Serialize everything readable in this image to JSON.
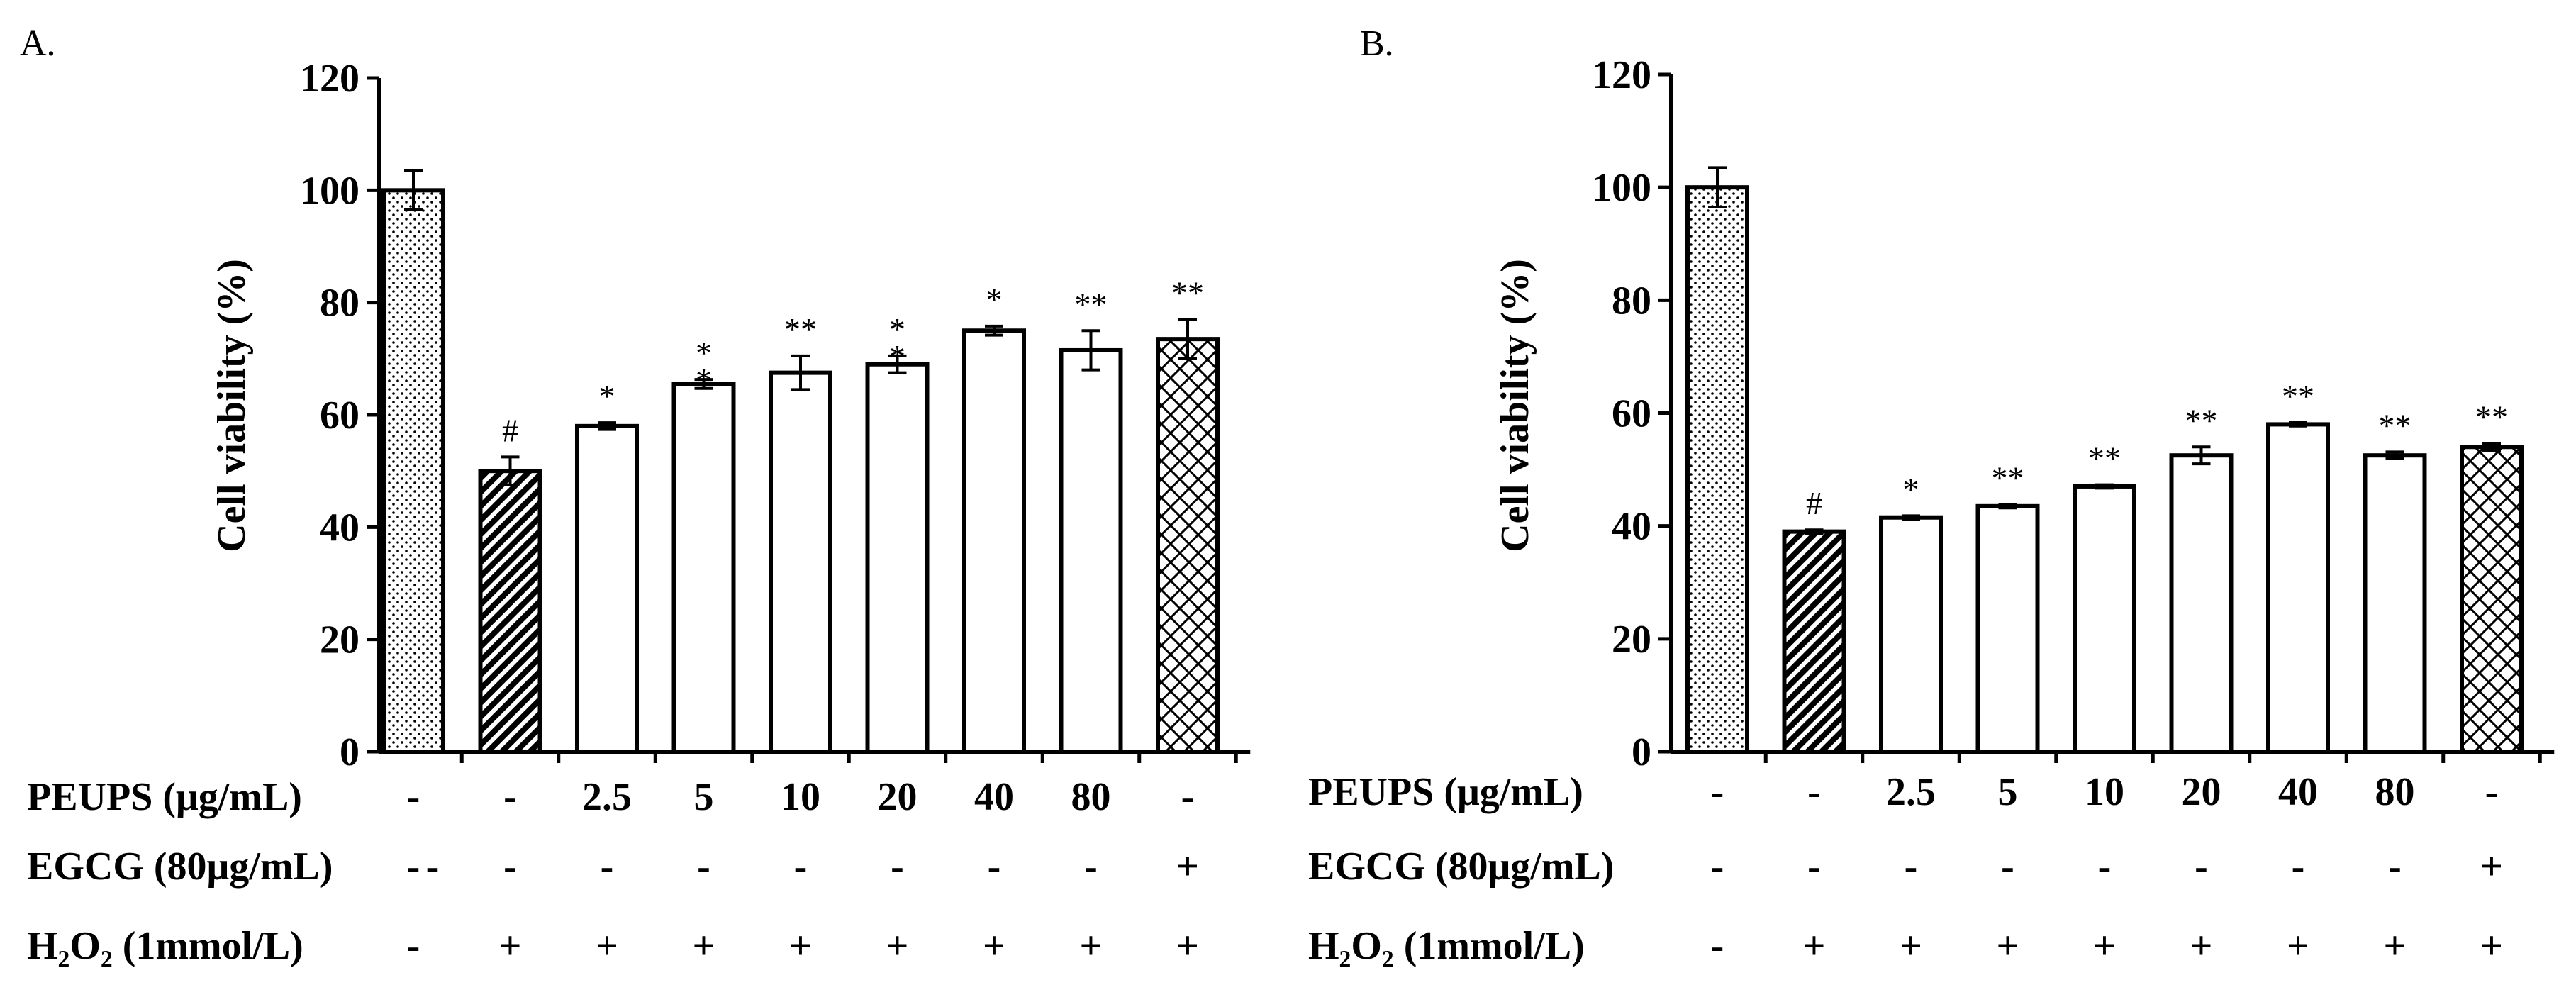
{
  "chart_data": [
    {
      "type": "bar",
      "panel_label": "A.",
      "ylabel": "Cell viability (%)",
      "ylim": [
        0,
        120
      ],
      "yticks": [
        "0",
        "20",
        "40",
        "60",
        "80",
        "100",
        "120"
      ],
      "values": [
        100,
        50,
        58,
        65.5,
        67.5,
        69,
        75,
        71.5,
        73.5
      ],
      "errors": [
        3.5,
        2.5,
        0.6,
        0.8,
        3,
        1.5,
        0.8,
        3.5,
        3.5
      ],
      "significance": [
        "",
        "#",
        "*",
        "*\n*",
        "**",
        "*\n*",
        "*",
        "**",
        "**"
      ],
      "fills": [
        "dots",
        "diagonal",
        "white",
        "white",
        "white",
        "white",
        "white",
        "white",
        "crosshatch"
      ],
      "conditions": [
        {
          "label": "PEUPS  (μg/mL)",
          "values": [
            "-",
            "-",
            "2.5",
            "5",
            "10",
            "20",
            "40",
            "80",
            "-"
          ]
        },
        {
          "label": "EGCG  (80μg/mL)",
          "label_suffix": "-",
          "values": [
            "-",
            "-",
            "-",
            "-",
            "-",
            "-",
            "-",
            "-",
            "+"
          ]
        },
        {
          "label": "H₂O₂  (1mmol/L)",
          "values": [
            "-",
            "+",
            "+",
            "+",
            "+",
            "+",
            "+",
            "+",
            "+"
          ]
        }
      ]
    },
    {
      "type": "bar",
      "panel_label": "B.",
      "ylabel": "Cell viability (%)",
      "ylim": [
        0,
        120
      ],
      "yticks": [
        "0",
        "20",
        "40",
        "60",
        "80",
        "100",
        "120"
      ],
      "values": [
        100,
        39,
        41.5,
        43.5,
        47,
        52.5,
        58,
        52.5,
        54
      ],
      "errors": [
        3.5,
        0.3,
        0.3,
        0.3,
        0.3,
        1.5,
        0.3,
        0.6,
        0.6
      ],
      "significance": [
        "",
        "#",
        "*",
        "**",
        "**",
        "**",
        "**",
        "**",
        "**"
      ],
      "fills": [
        "dots",
        "diagonal",
        "white",
        "white",
        "white",
        "white",
        "white",
        "white",
        "crosshatch"
      ],
      "conditions": [
        {
          "label": "PEUPS  (μg/mL)",
          "values": [
            "-",
            "-",
            "2.5",
            "5",
            "10",
            "20",
            "40",
            "80",
            "-"
          ]
        },
        {
          "label": "EGCG  (80μg/mL)",
          "values": [
            "-",
            "-",
            "-",
            "-",
            "-",
            "-",
            "-",
            "-",
            "+"
          ]
        },
        {
          "label": "H₂O₂  (1mmol/L)",
          "values": [
            "-",
            "+",
            "+",
            "+",
            "+",
            "+",
            "+",
            "+",
            "+"
          ]
        }
      ]
    }
  ]
}
